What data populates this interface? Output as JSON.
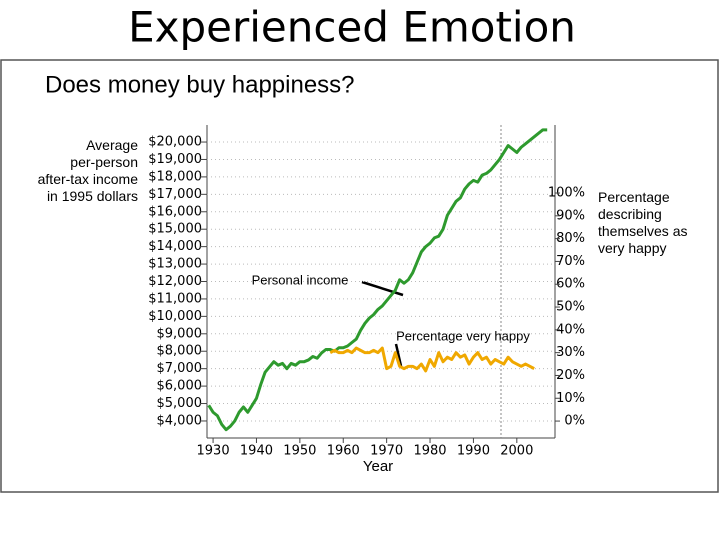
{
  "chart_data": {
    "type": "line",
    "title": "Experienced Emotion",
    "subtitle": "Does money buy happiness?",
    "ylabel": "Average per-person after-tax income in 1995 dollars",
    "y2label": "Percentage describing themselves as very happy",
    "xlabel": "Year",
    "x": [
      1929,
      1930,
      1931,
      1932,
      1933,
      1934,
      1935,
      1936,
      1937,
      1938,
      1939,
      1940,
      1941,
      1942,
      1943,
      1944,
      1945,
      1946,
      1947,
      1948,
      1949,
      1950,
      1951,
      1952,
      1953,
      1954,
      1955,
      1956,
      1957,
      1958,
      1959,
      1960,
      1961,
      1962,
      1963,
      1964,
      1965,
      1966,
      1967,
      1968,
      1969,
      1970,
      1971,
      1972,
      1973,
      1974,
      1975,
      1976,
      1977,
      1978,
      1979,
      1980,
      1981,
      1982,
      1983,
      1984,
      1985,
      1986,
      1987,
      1988,
      1989,
      1990,
      1991,
      1992,
      1993,
      1994,
      1995,
      1996,
      1997,
      1998,
      1999,
      2000,
      2001,
      2002,
      2003,
      2004,
      2005,
      2006,
      2007
    ],
    "series": [
      {
        "name": "Personal income",
        "color": "#2e9a2e",
        "axis": "y",
        "values": [
          4900,
          4500,
          4300,
          3800,
          3500,
          3700,
          4000,
          4500,
          4800,
          4500,
          4900,
          5300,
          6100,
          6800,
          7100,
          7400,
          7200,
          7300,
          7000,
          7300,
          7200,
          7400,
          7400,
          7500,
          7700,
          7600,
          7900,
          8100,
          8100,
          8000,
          8200,
          8200,
          8300,
          8500,
          8700,
          9200,
          9600,
          9900,
          10100,
          10400,
          10600,
          10900,
          11200,
          11500,
          12100,
          11900,
          12100,
          12500,
          13100,
          13700,
          14000,
          14200,
          14500,
          14600,
          15000,
          15800,
          16200,
          16600,
          16800,
          17300,
          17600,
          17800,
          17700,
          18100,
          18200,
          18400,
          18700,
          19000,
          19400,
          19800,
          19600,
          19400,
          19700,
          19900,
          20100,
          20300,
          20500,
          20700,
          20700
        ]
      },
      {
        "name": "Percentage very happy",
        "color": "#f0a800",
        "axis": "y2",
        "values": [
          null,
          null,
          null,
          null,
          null,
          null,
          null,
          null,
          null,
          null,
          null,
          null,
          null,
          null,
          null,
          null,
          null,
          null,
          null,
          null,
          null,
          null,
          null,
          null,
          null,
          null,
          null,
          null,
          30,
          31,
          30,
          30,
          31,
          30,
          32,
          31,
          30,
          30,
          31,
          30,
          32,
          23,
          24,
          30,
          24,
          23,
          24,
          24,
          23,
          25,
          22,
          27,
          24,
          30,
          26,
          28,
          27,
          30,
          28,
          29,
          25,
          28,
          30,
          27,
          28,
          25,
          27,
          26,
          25,
          28,
          26,
          25,
          24,
          25,
          24,
          23,
          null,
          null,
          null
        ]
      }
    ],
    "xlim": [
      1928.6,
      2008.8
    ],
    "xticks": [
      1930,
      1940,
      1950,
      1960,
      1970,
      1980,
      1990,
      2000
    ],
    "ylim": [
      3000,
      21000
    ],
    "yticks": [
      {
        "value": 4000,
        "label": "$4,000"
      },
      {
        "value": 5000,
        "label": "$5,000"
      },
      {
        "value": 6000,
        "label": "$6,000"
      },
      {
        "value": 7000,
        "label": "$7,000"
      },
      {
        "value": 8000,
        "label": "$8,000"
      },
      {
        "value": 9000,
        "label": "$9,000"
      },
      {
        "value": 10000,
        "label": "$10,000"
      },
      {
        "value": 11000,
        "label": "$11,000"
      },
      {
        "value": 12000,
        "label": "$12,000"
      },
      {
        "value": 13000,
        "label": "$13,000"
      },
      {
        "value": 14000,
        "label": "$14,000"
      },
      {
        "value": 15000,
        "label": "$15,000"
      },
      {
        "value": 16000,
        "label": "$16,000"
      },
      {
        "value": 17000,
        "label": "$17,000"
      },
      {
        "value": 18000,
        "label": "$18,000"
      },
      {
        "value": 19000,
        "label": "$19,000"
      },
      {
        "value": 20000,
        "label": "$20,000"
      }
    ],
    "y2lim": [
      -7.6,
      130
    ],
    "y2ticks": [
      {
        "value": 0,
        "label": "0%"
      },
      {
        "value": 10,
        "label": "10%"
      },
      {
        "value": 20,
        "label": "20%"
      },
      {
        "value": 30,
        "label": "30%"
      },
      {
        "value": 40,
        "label": "40%"
      },
      {
        "value": 50,
        "label": "50%"
      },
      {
        "value": 60,
        "label": "60%"
      },
      {
        "value": 70,
        "label": "70%"
      },
      {
        "value": 80,
        "label": "80%"
      },
      {
        "value": 90,
        "label": "90%"
      },
      {
        "value": 100,
        "label": "100%"
      }
    ],
    "grid": true
  }
}
